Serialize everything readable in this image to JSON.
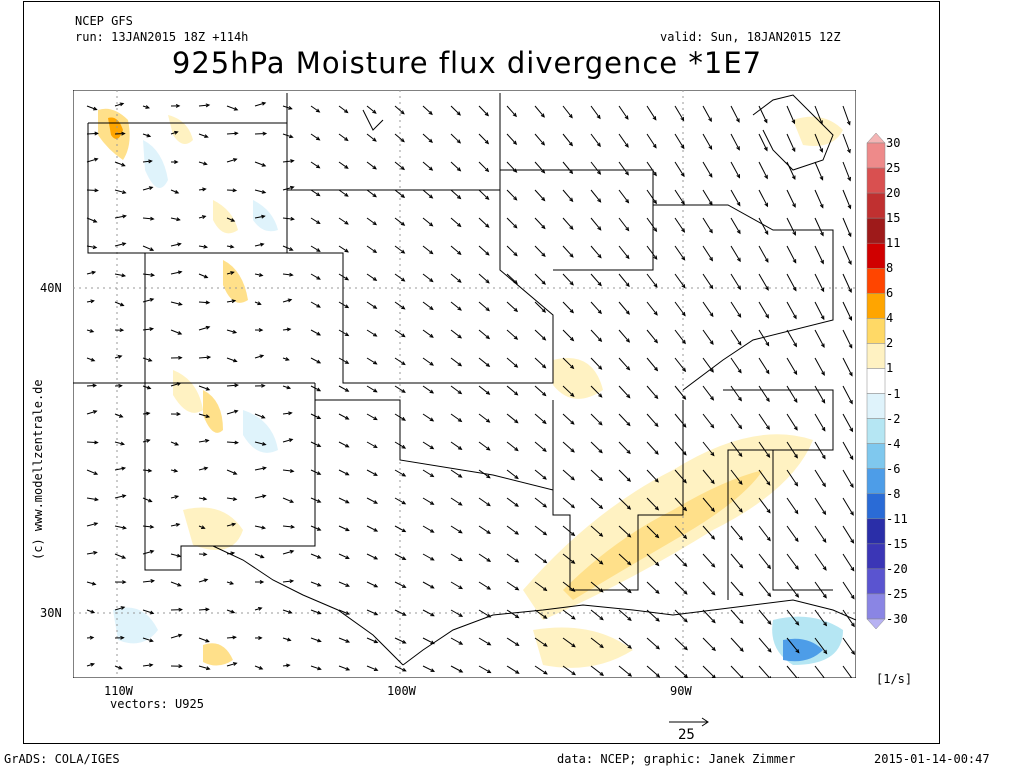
{
  "header": {
    "model": "NCEP GFS",
    "run": "run: 13JAN2015 18Z +114h",
    "valid": "valid: Sun, 18JAN2015 12Z",
    "title": "925hPa Moisture flux divergence *1E7"
  },
  "axes": {
    "lat_labels": [
      "40N",
      "30N"
    ],
    "lon_labels": [
      "110W",
      "100W",
      "90W"
    ]
  },
  "vectors_label": "vectors: U925",
  "vector_ref": "25",
  "units": "[1/s]",
  "credit_side": "(c) www.modellzentrale.de",
  "footer": {
    "left": "GrADS: COLA/IGES",
    "center": "data: NCEP; graphic: Janek Zimmer",
    "right": "2015-01-14-00:47"
  },
  "colorbar": {
    "labels": [
      "30",
      "25",
      "20",
      "15",
      "11",
      "8",
      "6",
      "4",
      "2",
      "1",
      "-1",
      "-2",
      "-4",
      "-6",
      "-8",
      "-11",
      "-15",
      "-20",
      "-25",
      "-30"
    ],
    "colors": [
      "#f4b5b5",
      "#ee8a8a",
      "#d95050",
      "#c03030",
      "#9e1a1a",
      "#d00000",
      "#ff4500",
      "#ffa500",
      "#ffd966",
      "#fff2c2",
      "#ffffff",
      "#dff3fb",
      "#b5e6f3",
      "#7fc8ee",
      "#4d9de8",
      "#2a6bd6",
      "#2a2ea8",
      "#3b36b6",
      "#5a54d0",
      "#8a85e4",
      "#b7b2f2"
    ]
  }
}
